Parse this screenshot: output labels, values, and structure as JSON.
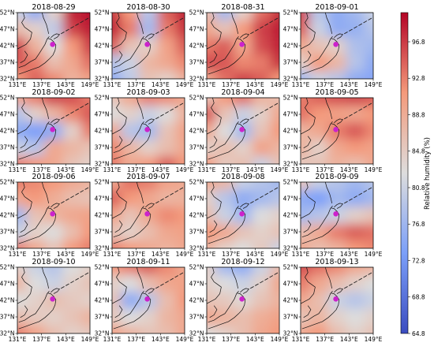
{
  "chart_data": {
    "type": "heatmap",
    "panels": [
      {
        "title": "2018-08-29",
        "field": [
          [
            0.45,
            0.3,
            0.55,
            0.95,
            0.98
          ],
          [
            0.62,
            0.55,
            0.42,
            0.9,
            0.96
          ],
          [
            0.88,
            0.66,
            0.5,
            0.75,
            0.9
          ],
          [
            0.86,
            0.8,
            0.62,
            0.7,
            0.82
          ],
          [
            0.74,
            0.84,
            0.78,
            0.66,
            0.72
          ]
        ]
      },
      {
        "title": "2018-08-30",
        "field": [
          [
            0.92,
            0.75,
            0.4,
            0.85,
            0.95
          ],
          [
            0.95,
            0.8,
            0.35,
            0.8,
            0.92
          ],
          [
            0.85,
            0.6,
            0.55,
            0.72,
            0.85
          ],
          [
            0.4,
            0.45,
            0.65,
            0.7,
            0.78
          ],
          [
            0.3,
            0.42,
            0.6,
            0.55,
            0.66
          ]
        ]
      },
      {
        "title": "2018-08-31",
        "field": [
          [
            0.62,
            0.35,
            0.55,
            0.82,
            0.92
          ],
          [
            0.7,
            0.6,
            0.75,
            0.9,
            0.96
          ],
          [
            0.8,
            0.85,
            0.7,
            0.88,
            0.95
          ],
          [
            0.88,
            0.86,
            0.78,
            0.8,
            0.92
          ],
          [
            0.7,
            0.82,
            0.9,
            0.85,
            0.75
          ]
        ]
      },
      {
        "title": "2018-09-01",
        "field": [
          [
            0.9,
            0.4,
            0.3,
            0.35,
            0.45
          ],
          [
            0.85,
            0.45,
            0.3,
            0.32,
            0.4
          ],
          [
            0.7,
            0.6,
            0.55,
            0.38,
            0.35
          ],
          [
            0.55,
            0.75,
            0.65,
            0.4,
            0.3
          ],
          [
            0.35,
            0.45,
            0.4,
            0.3,
            0.28
          ]
        ]
      },
      {
        "title": "2018-09-02",
        "field": [
          [
            0.7,
            0.8,
            0.9,
            0.88,
            0.8
          ],
          [
            0.4,
            0.55,
            0.65,
            0.78,
            0.86
          ],
          [
            0.3,
            0.25,
            0.3,
            0.55,
            0.8
          ],
          [
            0.45,
            0.4,
            0.7,
            0.65,
            0.6
          ],
          [
            0.8,
            0.75,
            0.7,
            0.6,
            0.55
          ]
        ]
      },
      {
        "title": "2018-09-03",
        "field": [
          [
            0.6,
            0.7,
            0.8,
            0.78,
            0.7
          ],
          [
            0.5,
            0.55,
            0.45,
            0.5,
            0.66
          ],
          [
            0.7,
            0.4,
            0.35,
            0.6,
            0.72
          ],
          [
            0.78,
            0.65,
            0.55,
            0.62,
            0.7
          ],
          [
            0.8,
            0.7,
            0.75,
            0.85,
            0.75
          ]
        ]
      },
      {
        "title": "2018-09-04",
        "field": [
          [
            0.6,
            0.75,
            0.82,
            0.66,
            0.62
          ],
          [
            0.86,
            0.6,
            0.45,
            0.55,
            0.7
          ],
          [
            0.7,
            0.5,
            0.35,
            0.6,
            0.75
          ],
          [
            0.55,
            0.62,
            0.55,
            0.72,
            0.65
          ],
          [
            0.75,
            0.58,
            0.62,
            0.45,
            0.6
          ]
        ]
      },
      {
        "title": "2018-09-05",
        "field": [
          [
            0.8,
            0.85,
            0.88,
            0.9,
            0.86
          ],
          [
            0.82,
            0.75,
            0.72,
            0.7,
            0.75
          ],
          [
            0.65,
            0.7,
            0.8,
            0.86,
            0.78
          ],
          [
            0.66,
            0.55,
            0.7,
            0.75,
            0.72
          ],
          [
            0.58,
            0.6,
            0.66,
            0.62,
            0.7
          ]
        ]
      },
      {
        "title": "2018-09-06",
        "field": [
          [
            0.8,
            0.78,
            0.75,
            0.7,
            0.66
          ],
          [
            0.7,
            0.75,
            0.68,
            0.62,
            0.6
          ],
          [
            0.35,
            0.6,
            0.66,
            0.7,
            0.72
          ],
          [
            0.45,
            0.55,
            0.5,
            0.62,
            0.75
          ],
          [
            0.8,
            0.7,
            0.6,
            0.75,
            0.8
          ]
        ]
      },
      {
        "title": "2018-09-07",
        "field": [
          [
            0.7,
            0.82,
            0.8,
            0.72,
            0.7
          ],
          [
            0.85,
            0.75,
            0.7,
            0.65,
            0.66
          ],
          [
            0.72,
            0.6,
            0.7,
            0.78,
            0.75
          ],
          [
            0.6,
            0.55,
            0.62,
            0.7,
            0.72
          ],
          [
            0.8,
            0.75,
            0.7,
            0.66,
            0.7
          ]
        ]
      },
      {
        "title": "2018-09-08",
        "field": [
          [
            0.7,
            0.65,
            0.45,
            0.4,
            0.35
          ],
          [
            0.55,
            0.4,
            0.3,
            0.35,
            0.4
          ],
          [
            0.62,
            0.45,
            0.35,
            0.5,
            0.55
          ],
          [
            0.75,
            0.7,
            0.6,
            0.55,
            0.6
          ],
          [
            0.65,
            0.55,
            0.5,
            0.58,
            0.45
          ]
        ]
      },
      {
        "title": "2018-09-09",
        "field": [
          [
            0.6,
            0.45,
            0.4,
            0.35,
            0.4
          ],
          [
            0.3,
            0.25,
            0.35,
            0.3,
            0.35
          ],
          [
            0.35,
            0.4,
            0.45,
            0.55,
            0.6
          ],
          [
            0.62,
            0.7,
            0.8,
            0.85,
            0.82
          ],
          [
            0.7,
            0.62,
            0.66,
            0.75,
            0.78
          ]
        ]
      },
      {
        "title": "2018-09-10",
        "field": [
          [
            0.55,
            0.45,
            0.4,
            0.5,
            0.55
          ],
          [
            0.65,
            0.5,
            0.45,
            0.55,
            0.6
          ],
          [
            0.5,
            0.55,
            0.62,
            0.58,
            0.55
          ],
          [
            0.62,
            0.58,
            0.55,
            0.6,
            0.66
          ],
          [
            0.8,
            0.72,
            0.62,
            0.55,
            0.58
          ]
        ]
      },
      {
        "title": "2018-09-11",
        "field": [
          [
            0.75,
            0.8,
            0.85,
            0.78,
            0.7
          ],
          [
            0.55,
            0.5,
            0.62,
            0.7,
            0.72
          ],
          [
            0.6,
            0.3,
            0.4,
            0.62,
            0.75
          ],
          [
            0.58,
            0.5,
            0.55,
            0.65,
            0.7
          ],
          [
            0.72,
            0.66,
            0.6,
            0.62,
            0.7
          ]
        ]
      },
      {
        "title": "2018-09-12",
        "field": [
          [
            0.55,
            0.35,
            0.3,
            0.45,
            0.62
          ],
          [
            0.55,
            0.5,
            0.45,
            0.55,
            0.7
          ],
          [
            0.6,
            0.58,
            0.52,
            0.6,
            0.66
          ],
          [
            0.7,
            0.66,
            0.62,
            0.68,
            0.72
          ],
          [
            0.5,
            0.55,
            0.62,
            0.7,
            0.75
          ]
        ]
      },
      {
        "title": "2018-09-13",
        "field": [
          [
            0.88,
            0.82,
            0.78,
            0.7,
            0.66
          ],
          [
            0.8,
            0.7,
            0.62,
            0.55,
            0.5
          ],
          [
            0.7,
            0.62,
            0.45,
            0.4,
            0.45
          ],
          [
            0.6,
            0.65,
            0.55,
            0.5,
            0.55
          ],
          [
            0.7,
            0.75,
            0.62,
            0.55,
            0.6
          ]
        ]
      }
    ],
    "field_note_norm": "fields are normalized humidity 0..1 mapped to colorbar range",
    "xticks": [
      "131°E",
      "137°E",
      "143°E",
      "149°E"
    ],
    "yticks": [
      "52°N",
      "47°N",
      "42°N",
      "37°N",
      "32°N"
    ],
    "colorbar": {
      "label": "Relative humidity (%)",
      "min": 64.8,
      "max": 100.0,
      "ticks": [
        "96.8",
        "92.8",
        "88.8",
        "84.8",
        "80.8",
        "76.8",
        "72.8",
        "68.8",
        "64.8"
      ]
    },
    "colors": {
      "low": "#3b4cc0",
      "mid": "#dddddd",
      "high": "#b40426",
      "marker": "#cc22cc"
    }
  }
}
